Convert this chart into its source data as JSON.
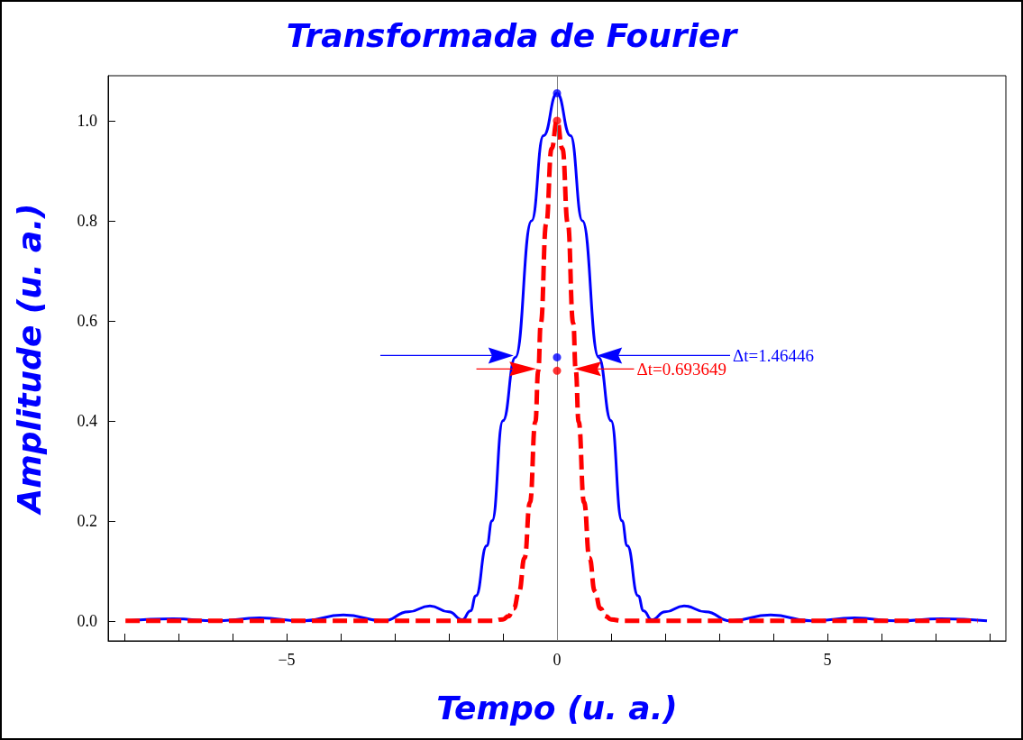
{
  "chart_data": {
    "type": "line",
    "title": "Transformada de Fourier",
    "xlabel": "Tempo (u. a.)",
    "ylabel": "Amplitude (u. a.)",
    "xlim": [
      -8.3,
      8.3
    ],
    "ylim": [
      -0.04,
      1.09
    ],
    "xticks": [
      {
        "value": -8,
        "label": null
      },
      {
        "value": -7,
        "label": null
      },
      {
        "value": -6,
        "label": null
      },
      {
        "value": -5,
        "label": "−5"
      },
      {
        "value": -4,
        "label": null
      },
      {
        "value": -3,
        "label": null
      },
      {
        "value": -2,
        "label": null
      },
      {
        "value": -1,
        "label": null
      },
      0,
      {
        "value": 1,
        "label": null
      },
      {
        "value": 2,
        "label": null
      },
      {
        "value": 3,
        "label": null
      },
      {
        "value": 4,
        "label": null
      },
      5,
      {
        "value": 6,
        "label": null
      },
      {
        "value": 7,
        "label": null
      },
      {
        "value": 8,
        "label": null
      }
    ],
    "yticks": [
      {
        "value": 0,
        "label": "0.0"
      },
      {
        "value": 0.2,
        "label": "0.2"
      },
      {
        "value": 0.4,
        "label": "0.4"
      },
      {
        "value": 0.6,
        "label": "0.6"
      },
      {
        "value": 0.8,
        "label": "0.8"
      },
      {
        "value": 1,
        "label": "1.0"
      }
    ],
    "grid": false,
    "marker": "none",
    "ref_lines": [
      {
        "axis": "x",
        "value": 0,
        "color": "#808080"
      }
    ],
    "annotations": [
      "Δt=1.46446",
      "Δt=0.693649"
    ],
    "series": [
      {
        "color": "#0000ff",
        "line_style": "solid",
        "x": [
          -7.95,
          -7.1,
          -6.3,
          -5.5,
          -4.7,
          -3.95,
          -3.2,
          -2.75,
          -2.35,
          -2.0,
          -1.75,
          -1.6,
          -1.5,
          -1.3,
          -1.2,
          -1.0,
          -0.77,
          -0.47,
          -0.25,
          0,
          0.25,
          0.47,
          0.77,
          1.0,
          1.2,
          1.3,
          1.5,
          1.6,
          1.75,
          2.0,
          2.35,
          2.75,
          3.2,
          3.95,
          4.7,
          5.5,
          6.3,
          7.1,
          7.95
        ],
        "values": [
          0,
          0.004,
          0,
          0.006,
          0,
          0.012,
          0,
          0.018,
          0.03,
          0.018,
          0.002,
          0.02,
          0.05,
          0.15,
          0.2,
          0.4,
          0.527,
          0.8,
          0.97,
          1.055,
          0.97,
          0.8,
          0.527,
          0.4,
          0.2,
          0.15,
          0.05,
          0.02,
          0.002,
          0.018,
          0.03,
          0.018,
          0,
          0.012,
          0,
          0.006,
          0,
          0.004,
          0
        ]
      },
      {
        "color": "#ff0000",
        "line_style": "dashed",
        "x": [
          -7.98,
          -1.2,
          -1.0,
          -0.9,
          -0.8,
          -0.7,
          -0.6,
          -0.5,
          -0.4,
          -0.347,
          -0.3,
          -0.2,
          -0.1,
          0,
          0.1,
          0.2,
          0.3,
          0.347,
          0.4,
          0.5,
          0.6,
          0.7,
          0.8,
          0.9,
          1.0,
          1.2,
          7.78
        ],
        "values": [
          0,
          0,
          0.003,
          0.009,
          0.025,
          0.059,
          0.126,
          0.237,
          0.398,
          0.5,
          0.595,
          0.794,
          0.944,
          1.0,
          0.944,
          0.794,
          0.595,
          0.5,
          0.398,
          0.237,
          0.126,
          0.059,
          0.025,
          0.009,
          0.003,
          0,
          0
        ]
      },
      {
        "type": "scatter",
        "color": "#0000ff",
        "marker": "circle",
        "x": [
          0,
          0
        ],
        "values": [
          1.055,
          0.527
        ]
      },
      {
        "type": "scatter",
        "color": "#ff0000",
        "marker": "circle",
        "x": [
          0,
          0
        ],
        "values": [
          1.0,
          0.5
        ]
      }
    ]
  }
}
